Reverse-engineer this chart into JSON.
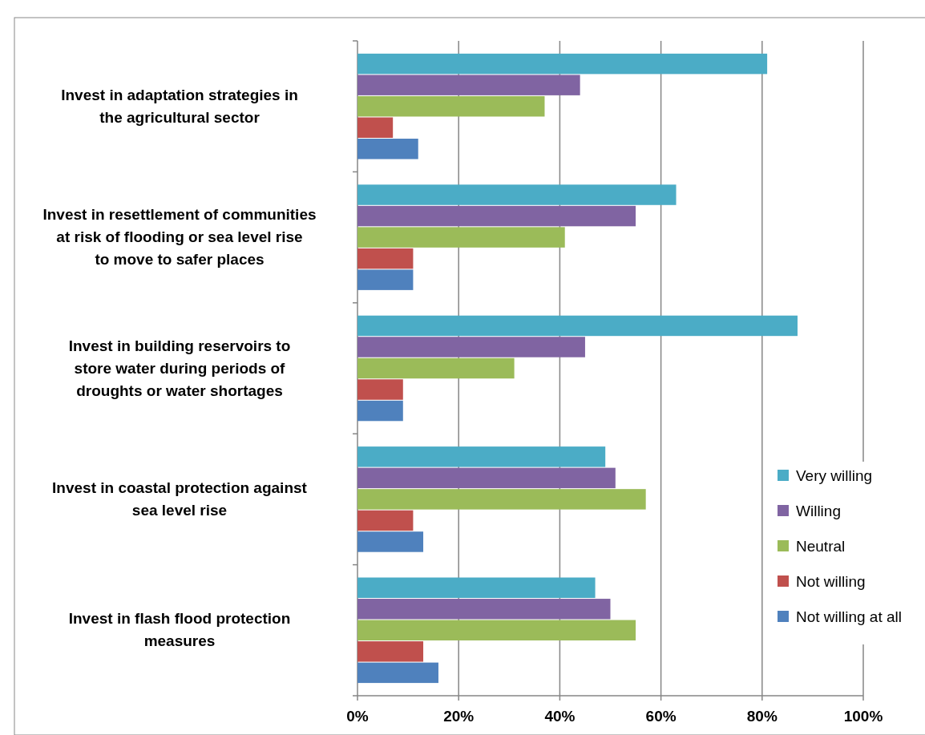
{
  "chart_data": {
    "type": "bar",
    "orientation": "horizontal",
    "categories": [
      "Invest in adaptation strategies in the agricultural sector",
      "Invest in resettlement of communities at risk of flooding or sea level rise to move to safer places",
      "Invest in building reservoirs to store water during periods of droughts or water shortages",
      "Invest in coastal protection against sea level rise",
      "Invest in flash flood protection measures"
    ],
    "series": [
      {
        "name": "Very willing",
        "color": "#4bacc6",
        "values": [
          81,
          63,
          87,
          49,
          47
        ]
      },
      {
        "name": "Willing",
        "color": "#8064a2",
        "values": [
          44,
          55,
          45,
          51,
          50
        ]
      },
      {
        "name": "Neutral",
        "color": "#9bbb59",
        "values": [
          37,
          41,
          31,
          57,
          55
        ]
      },
      {
        "name": "Not willing",
        "color": "#c0504d",
        "values": [
          7,
          11,
          9,
          11,
          13
        ]
      },
      {
        "name": "Not willing at all",
        "color": "#4f81bd",
        "values": [
          12,
          11,
          9,
          13,
          16
        ]
      }
    ],
    "xlim": [
      0,
      100
    ],
    "xticks": [
      {
        "value": 0,
        "label": "0%"
      },
      {
        "value": 20,
        "label": "20%"
      },
      {
        "value": 40,
        "label": "40%"
      },
      {
        "value": 60,
        "label": "60%"
      },
      {
        "value": 80,
        "label": "80%"
      },
      {
        "value": 100,
        "label": "100%"
      }
    ],
    "grid": "x",
    "legend": "right"
  }
}
